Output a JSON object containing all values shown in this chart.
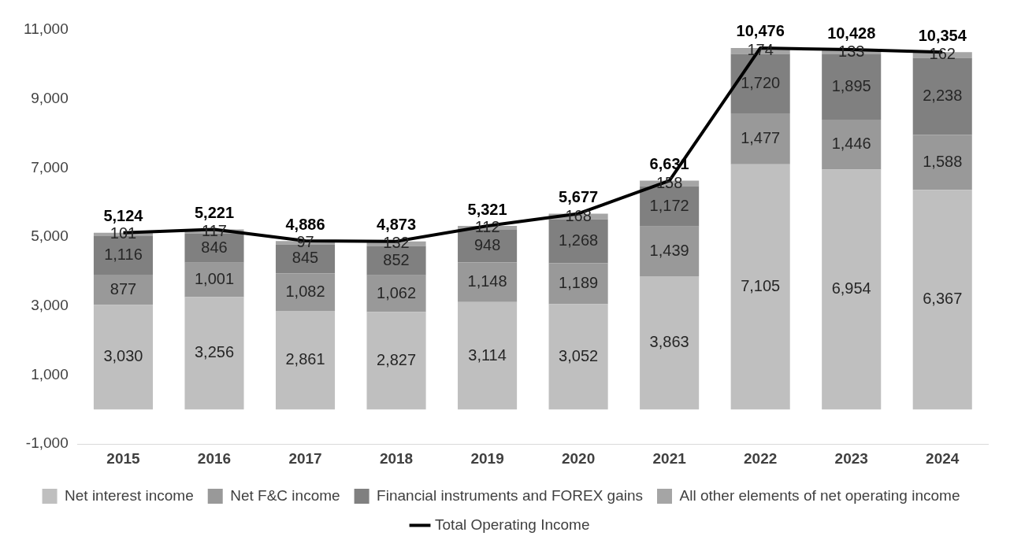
{
  "chart_data": {
    "type": "bar",
    "stacked": true,
    "categories": [
      "2015",
      "2016",
      "2017",
      "2018",
      "2019",
      "2020",
      "2021",
      "2022",
      "2023",
      "2024"
    ],
    "series": [
      {
        "name": "Net interest income",
        "color": "#bfbfbf",
        "values": [
          3030,
          3256,
          2861,
          2827,
          3114,
          3052,
          3863,
          7105,
          6954,
          6367
        ],
        "value_labels": [
          "3,030",
          "3,256",
          "2,861",
          "2,827",
          "3,114",
          "3,052",
          "3,863",
          "7,105",
          "6,954",
          "6,367"
        ]
      },
      {
        "name": "Net F&C income",
        "color": "#999999",
        "values": [
          877,
          1001,
          1082,
          1062,
          1148,
          1189,
          1439,
          1477,
          1446,
          1588
        ],
        "value_labels": [
          "877",
          "1,001",
          "1,082",
          "1,062",
          "1,148",
          "1,189",
          "1,439",
          "1,477",
          "1,446",
          "1,588"
        ]
      },
      {
        "name": "Financial instruments and FOREX gains",
        "color": "#808080",
        "values": [
          1116,
          846,
          845,
          852,
          948,
          1268,
          1172,
          1720,
          1895,
          2238
        ],
        "value_labels": [
          "1,116",
          "846",
          "845",
          "852",
          "948",
          "1,268",
          "1,172",
          "1,720",
          "1,895",
          "2,238"
        ]
      },
      {
        "name": "All other elements of net operating income",
        "color": "#a5a5a5",
        "values": [
          101,
          117,
          97,
          132,
          112,
          168,
          158,
          174,
          133,
          162
        ],
        "value_labels": [
          "101",
          "117",
          "97",
          "132",
          "112",
          "168",
          "158",
          "174",
          "133",
          "162"
        ]
      },
      {
        "name": "Total Operating Income",
        "type": "line",
        "color": "#000000",
        "values": [
          5124,
          5221,
          4886,
          4873,
          5321,
          5677,
          6631,
          10476,
          10428,
          10354
        ],
        "value_labels": [
          "5,124",
          "5,221",
          "4,886",
          "4,873",
          "5,321",
          "5,677",
          "6,631",
          "10,476",
          "10,428",
          "10,354"
        ]
      }
    ],
    "ylim": [
      -1000,
      11000
    ],
    "yticks": [
      {
        "value": -1000,
        "label": "-1,000"
      },
      {
        "value": 1000,
        "label": "1,000"
      },
      {
        "value": 3000,
        "label": "3,000"
      },
      {
        "value": 5000,
        "label": "5,000"
      },
      {
        "value": 7000,
        "label": "7,000"
      },
      {
        "value": 9000,
        "label": "9,000"
      },
      {
        "value": 11000,
        "label": "11,000"
      }
    ],
    "grid": false,
    "legend": "bottom",
    "marker": "none"
  }
}
